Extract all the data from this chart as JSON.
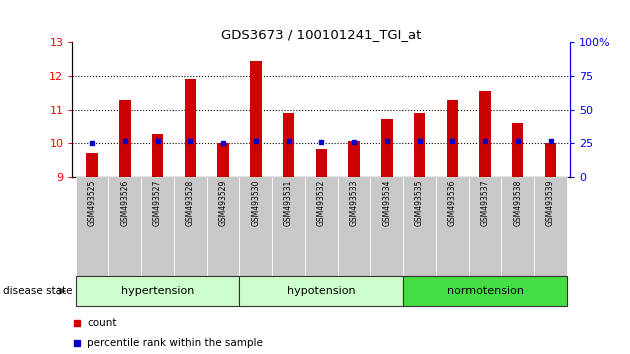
{
  "title": "GDS3673 / 100101241_TGI_at",
  "samples": [
    "GSM493525",
    "GSM493526",
    "GSM493527",
    "GSM493528",
    "GSM493529",
    "GSM493530",
    "GSM493531",
    "GSM493532",
    "GSM493533",
    "GSM493534",
    "GSM493535",
    "GSM493536",
    "GSM493537",
    "GSM493538",
    "GSM493539"
  ],
  "count_values": [
    9.72,
    11.28,
    10.27,
    11.9,
    10.02,
    12.45,
    10.9,
    9.82,
    10.07,
    10.72,
    10.9,
    11.28,
    11.55,
    10.6,
    10.02
  ],
  "percentile_values": [
    25,
    27,
    27,
    27,
    25,
    27,
    27,
    26,
    26,
    27,
    27,
    27,
    27,
    27,
    27
  ],
  "y_min": 9,
  "y_max": 13,
  "y_ticks": [
    9,
    10,
    11,
    12,
    13
  ],
  "y2_ticks": [
    0,
    25,
    50,
    75,
    100
  ],
  "bar_color": "#cc0000",
  "dot_color": "#0000cc",
  "groups": [
    {
      "label": "hypertension",
      "start": 0,
      "end": 4,
      "color": "#ccffcc"
    },
    {
      "label": "hypotension",
      "start": 5,
      "end": 9,
      "color": "#ccffcc"
    },
    {
      "label": "normotension",
      "start": 10,
      "end": 14,
      "color": "#44dd44"
    }
  ],
  "xlabel_disease": "disease state",
  "legend_count_label": "count",
  "legend_pct_label": "percentile rank within the sample",
  "bg_color": "#ffffff",
  "sample_label_bg": "#c8c8c8"
}
